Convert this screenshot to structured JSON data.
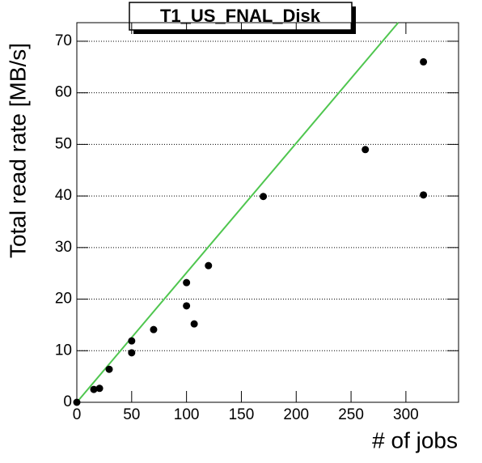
{
  "chart_data": {
    "type": "scatter",
    "title": "T1_US_FNAL_Disk",
    "x_label": "# of jobs",
    "y_label": "Total read rate [MB/s]",
    "series": [
      {
        "color": "#000000",
        "x": [
          0,
          15.5,
          20.7,
          29.5,
          50,
          50,
          70,
          100,
          100,
          107,
          120,
          170,
          263,
          316,
          316
        ],
        "values": [
          0,
          2.5,
          2.7,
          6.4,
          9.6,
          11.9,
          14.1,
          23.2,
          18.7,
          15.2,
          26.5,
          39.9,
          49,
          66,
          40.2
        ]
      }
    ],
    "fit": {
      "color": "#4fc64f",
      "x": [
        0,
        293
      ],
      "values": [
        0,
        73.6
      ]
    },
    "xlim": [
      0,
      348
    ],
    "ylim": [
      0,
      73.6
    ],
    "xticks": [
      0,
      50,
      100,
      150,
      200,
      250,
      300
    ],
    "yticks": [
      0,
      10,
      20,
      30,
      40,
      50,
      60,
      70
    ],
    "grid": true
  }
}
